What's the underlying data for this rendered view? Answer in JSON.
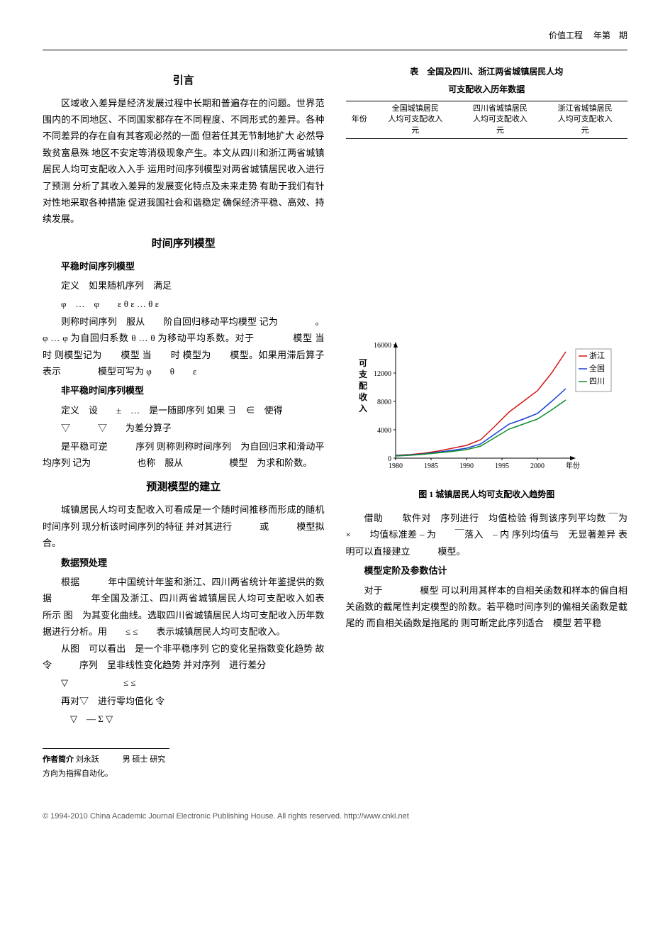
{
  "header": {
    "journal": "价值工程",
    "issue": "年第　期"
  },
  "intro": {
    "title": "引言",
    "p1": "区域收入差异是经济发展过程中长期和普遍存在的问题。世界范围内的不同地区、不同国家都存在不同程度、不同形式的差异。各种不同差异的存在自有其客观必然的一面 但若任其无节制地扩大 必然导致贫富悬殊 地区不安定等消极现象产生。本文从四川和浙江两省城镇居民人均可支配收入入手 运用时间序列模型对两省城镇居民收入进行了预测 分析了其收入差异的发展变化特点及未来走势 有助于我们有针对性地采取各种措施 促进我国社会和谐稳定 确保经济平稳、高效、持续发展。"
  },
  "sec1": {
    "title": "时间序列模型",
    "sub1": {
      "title": "平稳时间序列模型",
      "p1": "定义　如果随机序列　满足",
      "f1": "φ　…　φ　　ε  θ ε  …  θ ε",
      "p2": "则称时间序列　服从　　阶自回归移动平均模型 记为　　　　。φ … φ 为自回归系数 θ … θ 为移动平均系数。对于　　　　模型 当　时 则模型记为　　模型 当　　时 模型为　　模型。如果用滞后算子　表示　　　　模型可写为 φ　　θ　　ε"
    },
    "sub2": {
      "title": "非平稳时间序列模型",
      "p1": "定义　设　　±　…　是一随即序列 如果 ∃　∈　使得",
      "f1": "▽　　　▽　　为差分算子",
      "p2": "是平稳可逆　　　序列 则称则称时间序列　为自回归求和滑动平均序列 记为　　　　　也称　服从　　　　　模型　为求和阶数。"
    }
  },
  "sec2": {
    "title": "预测模型的建立",
    "p1": "城镇居民人均可支配收入可看成是一个随时间推移而形成的随机时间序列 现分析该时间序列的特征 并对其进行　　　或　　　模型拟合。",
    "sub1": {
      "title": "数据预处理",
      "p1": "根据　　　年中国统计年鉴和浙江、四川两省统计年鉴提供的数据　　　　年全国及浙江、四川两省城镇居民人均可支配收入如表　所示 图　为其变化曲线。选取四川省城镇居民人均可支配收入历年数据进行分析。用　　≤ ≤　　表示城镇居民人均可支配收入。",
      "p2": "从图　可以看出　是一个非平稳序列 它的变化呈指数变化趋势 故令　　　序列　呈非线性变化趋势 并对序列　进行差分",
      "f1": "▽　　　　　　≤ ≤",
      "p3": "再对▽　进行零均值化 令",
      "f2": "▽　— Σ ▽"
    },
    "right_p1": "借助　　软件对　序列进行　均值检验 得到该序列平均数 ￣为　　×　　均值标准差 – 为　　￣落入　– 内 序列均值与　无显著差异 表明可以直接建立　　　模型。",
    "sub2": {
      "title": "模型定阶及参数估计",
      "p1": "对于　　　　模型 可以利用其样本的自相关函数和样本的偏自相关函数的截尾性判定模型的阶数。若平稳时间序列的偏相关函数是截尾的 而自相关函数是拖尾的 则可断定此序列适合　模型 若平稳"
    }
  },
  "table": {
    "title1": "表　全国及四川、浙江两省城镇居民人均",
    "title2": "可支配收入历年数据",
    "col0": "年份",
    "col1a": "全国城镇居民",
    "col1b": "人均可支配收入",
    "col1c": "元",
    "col2a": "四川省城镇居民",
    "col2b": "人均可支配收入",
    "col2c": "元",
    "col3a": "浙江省城镇居民",
    "col3b": "人均可支配收入",
    "col3c": "元"
  },
  "chart": {
    "caption": "图 1  城镇居民人均可支配收入趋势图",
    "ylabel": "可支配收入",
    "yticks": [
      0,
      4000,
      8000,
      12000,
      16000
    ],
    "xticks": [
      1980,
      1985,
      1990,
      1995,
      2000
    ],
    "xlabel_last": "年份",
    "ylim": [
      0,
      16000
    ],
    "xlim": [
      1980,
      2005
    ],
    "series": [
      {
        "name": "浙江",
        "color": "#d01818",
        "points": [
          [
            1980,
            400
          ],
          [
            1982,
            500
          ],
          [
            1984,
            700
          ],
          [
            1986,
            1000
          ],
          [
            1988,
            1400
          ],
          [
            1990,
            1800
          ],
          [
            1992,
            2600
          ],
          [
            1994,
            4500
          ],
          [
            1996,
            6500
          ],
          [
            1998,
            8000
          ],
          [
            2000,
            9500
          ],
          [
            2002,
            12000
          ],
          [
            2004,
            15000
          ]
        ]
      },
      {
        "name": "全国",
        "color": "#1a3fd4",
        "points": [
          [
            1980,
            350
          ],
          [
            1982,
            450
          ],
          [
            1984,
            600
          ],
          [
            1986,
            850
          ],
          [
            1988,
            1100
          ],
          [
            1990,
            1400
          ],
          [
            1992,
            2000
          ],
          [
            1994,
            3400
          ],
          [
            1996,
            4800
          ],
          [
            1998,
            5500
          ],
          [
            2000,
            6300
          ],
          [
            2002,
            8000
          ],
          [
            2004,
            9800
          ]
        ]
      },
      {
        "name": "四川",
        "color": "#0a8f2a",
        "points": [
          [
            1980,
            300
          ],
          [
            1982,
            400
          ],
          [
            1984,
            550
          ],
          [
            1986,
            750
          ],
          [
            1988,
            950
          ],
          [
            1990,
            1200
          ],
          [
            1992,
            1700
          ],
          [
            1994,
            2900
          ],
          [
            1996,
            4100
          ],
          [
            1998,
            4800
          ],
          [
            2000,
            5500
          ],
          [
            2002,
            6800
          ],
          [
            2004,
            8200
          ]
        ]
      }
    ],
    "axis_color": "#000000",
    "background": "#ffffff",
    "line_width": 1.5,
    "tick_fontsize": 10,
    "legend_box_color": "#999999"
  },
  "author": {
    "label": "作者简介",
    "text": "刘永跃　　　男 硕士 研究方向为指挥自动化。"
  },
  "footer": {
    "text": "© 1994-2010 China Academic Journal Electronic Publishing House. All rights reserved.    http://www.cnki.net"
  }
}
